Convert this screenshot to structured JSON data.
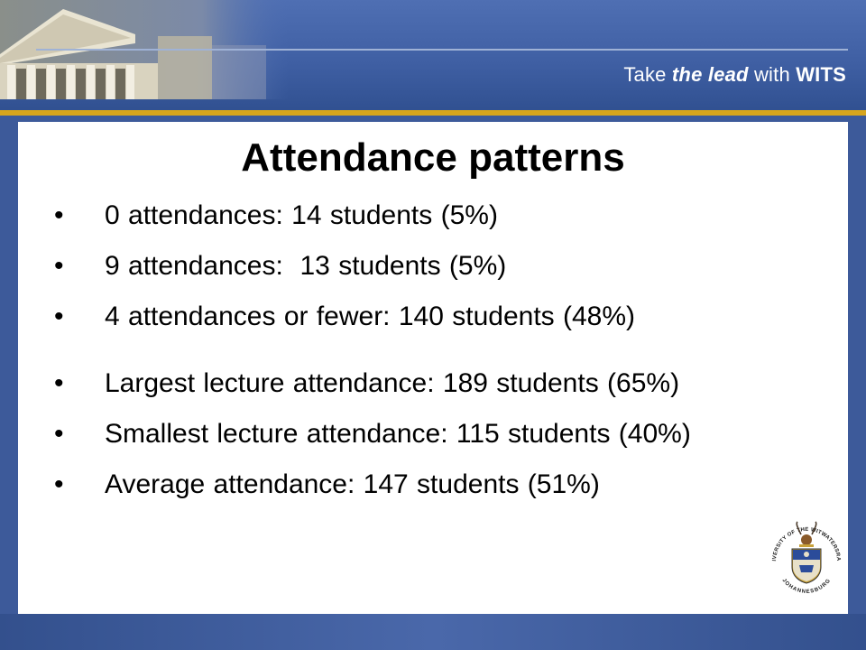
{
  "header": {
    "tagline": {
      "prefix": "Take ",
      "emphasis": "the lead",
      "middle": " with ",
      "brand": "WITS"
    }
  },
  "slide": {
    "title": "Attendance patterns",
    "bullet_char": "•",
    "bullets": [
      "0 attendances: 14 students (5%)",
      "9 attendances:  13 students (5%)",
      "4 attendances or fewer: 140 students (48%)",
      "Largest lecture attendance: 189 students (65%)",
      "Smallest lecture attendance: 115 students (40%)",
      "Average attendance: 147 students (51%)"
    ]
  },
  "crest": {
    "icon": "university-crest-icon",
    "arc_top": "UNIVERSITY OF THE WITWATERSRAND",
    "arc_bottom": "JOHANNESBURG"
  },
  "colors": {
    "band_blue": "#3f5fa3",
    "gold": "#d7a51d"
  }
}
